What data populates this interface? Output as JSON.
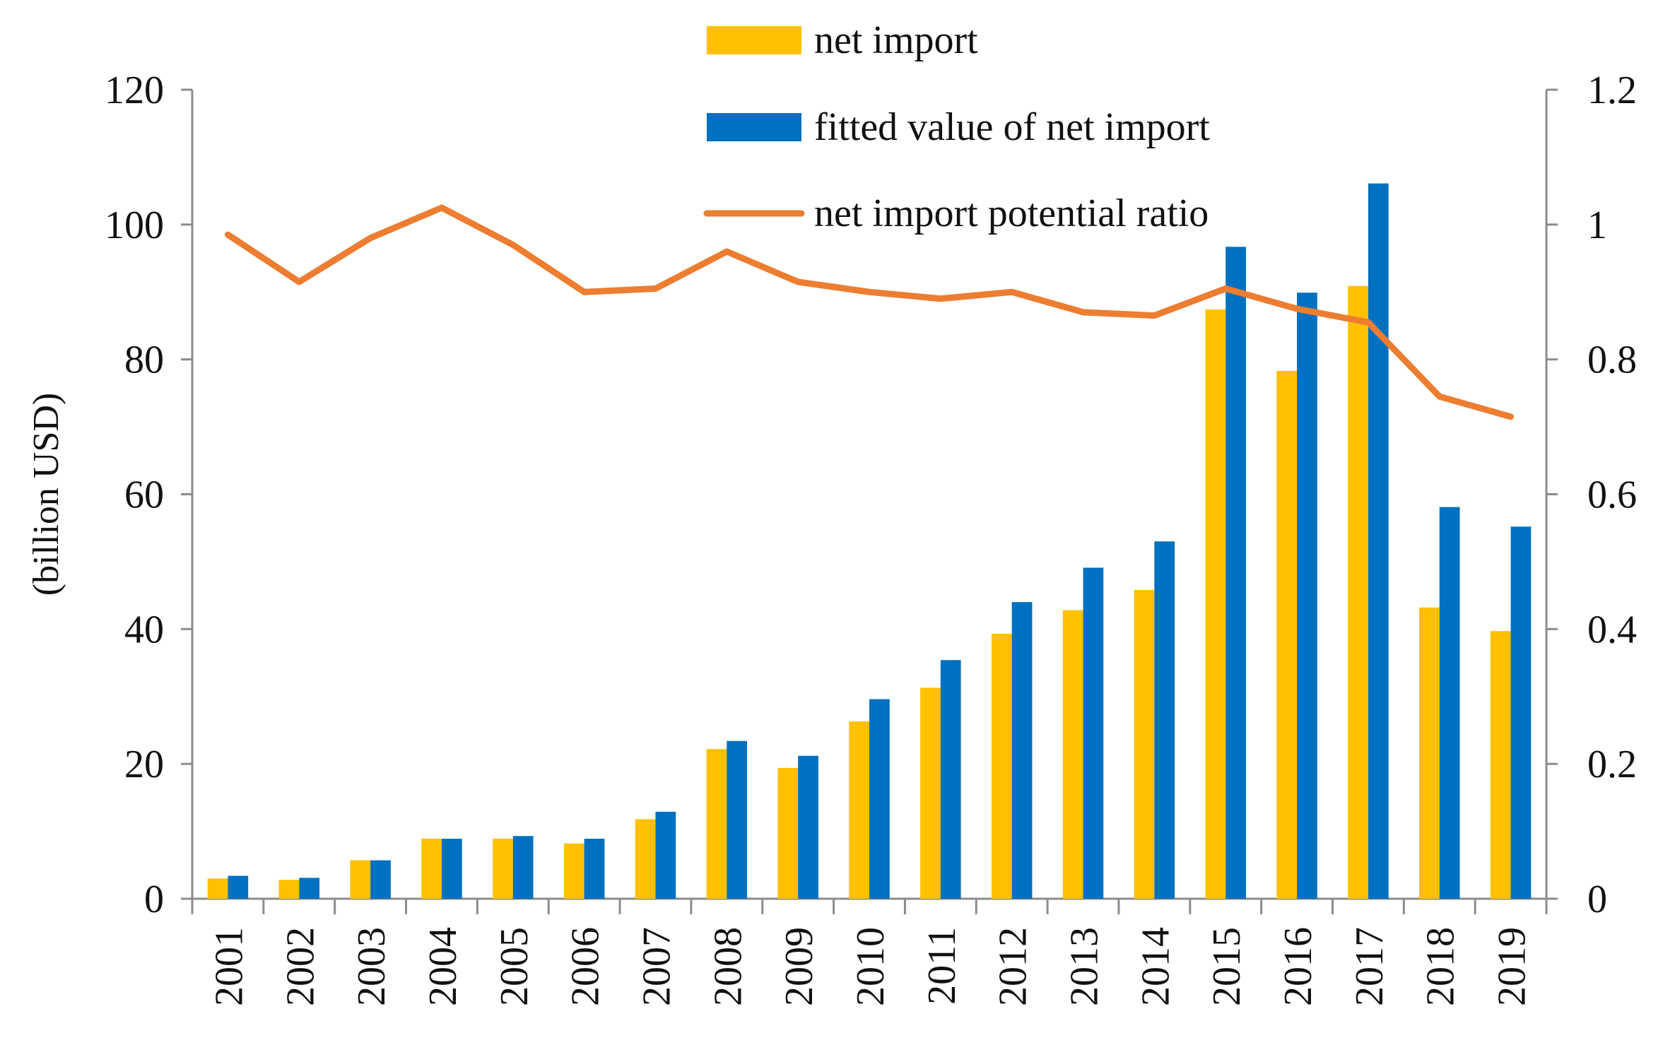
{
  "chart_data": {
    "type": "bar",
    "categories": [
      "2001",
      "2002",
      "2003",
      "2004",
      "2005",
      "2006",
      "2007",
      "2008",
      "2009",
      "2010",
      "2011",
      "2012",
      "2013",
      "2014",
      "2015",
      "2016",
      "2017",
      "2018",
      "2019"
    ],
    "series": [
      {
        "name": "net import",
        "type": "bar",
        "axis": "left",
        "color": "#FFC000",
        "values": [
          3.0,
          2.8,
          5.7,
          8.9,
          8.9,
          8.2,
          11.8,
          22.2,
          19.4,
          26.3,
          31.3,
          39.3,
          42.8,
          45.8,
          87.4,
          78.3,
          90.9,
          43.2,
          39.7
        ]
      },
      {
        "name": "fitted value of net import",
        "type": "bar",
        "axis": "left",
        "color": "#0070C0",
        "values": [
          3.4,
          3.1,
          5.7,
          8.9,
          9.3,
          8.9,
          12.9,
          23.4,
          21.2,
          29.6,
          35.4,
          44.0,
          49.1,
          53.0,
          96.7,
          89.9,
          106.1,
          58.1,
          55.2
        ]
      },
      {
        "name": "net import potential ratio",
        "type": "line",
        "axis": "right",
        "color": "#ED7D31",
        "values": [
          0.985,
          0.915,
          0.98,
          1.025,
          0.97,
          0.9,
          0.905,
          0.96,
          0.915,
          0.9,
          0.89,
          0.9,
          0.87,
          0.865,
          0.905,
          0.875,
          0.855,
          0.745,
          0.715
        ]
      }
    ],
    "ylabel": "(billion USD)",
    "ylim": [
      0,
      120
    ],
    "y_ticks": [
      "0",
      "20",
      "40",
      "60",
      "80",
      "100",
      "120"
    ],
    "y2lim": [
      0,
      1.2
    ],
    "y2_ticks": [
      "0",
      "0.2",
      "0.4",
      "0.6",
      "0.8",
      "1",
      "1.2"
    ],
    "legend_position": "top-center",
    "grid": false
  }
}
